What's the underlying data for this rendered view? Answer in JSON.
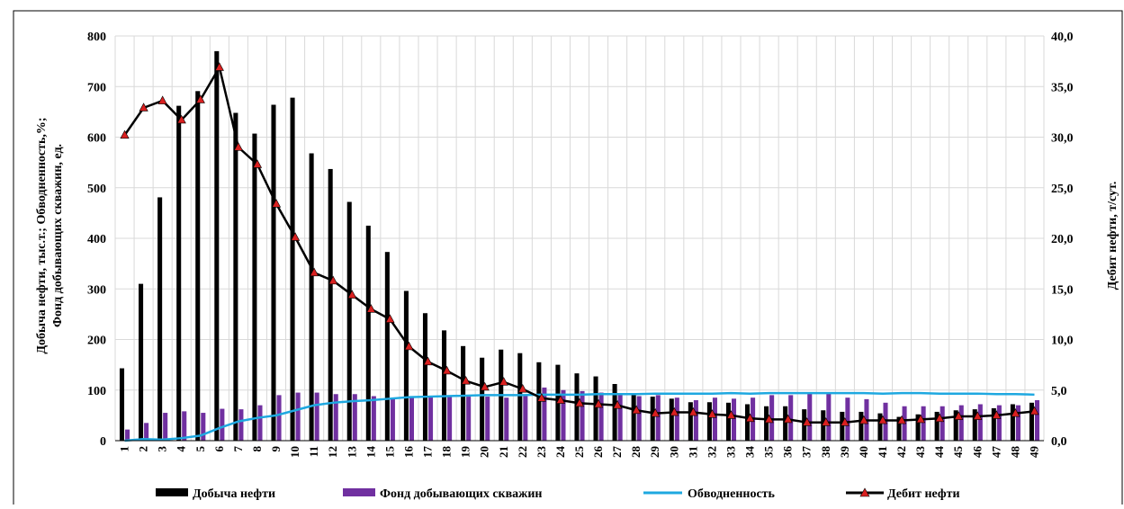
{
  "chart_data": {
    "type": "bar",
    "categories": [
      "1",
      "2",
      "3",
      "4",
      "5",
      "6",
      "7",
      "8",
      "9",
      "10",
      "11",
      "12",
      "13",
      "14",
      "15",
      "16",
      "17",
      "18",
      "19",
      "20",
      "21",
      "22",
      "23",
      "24",
      "25",
      "26",
      "27",
      "28",
      "29",
      "30",
      "31",
      "32",
      "33",
      "34",
      "35",
      "36",
      "37",
      "38",
      "39",
      "40",
      "41",
      "42",
      "43",
      "44",
      "45",
      "46",
      "47",
      "48",
      "49"
    ],
    "y_left": {
      "label_line1": "Добыча нефти, тыс.т.; Обводненность,%;",
      "label_line2": "Фонд добывающих скважин, ед.",
      "min": 0,
      "max": 800,
      "step": 100,
      "ticks": [
        "0",
        "100",
        "200",
        "300",
        "400",
        "500",
        "600",
        "700",
        "800"
      ]
    },
    "y_right": {
      "label": "Дебит нефти, т/сут.",
      "min": 0,
      "max": 40,
      "step": 5,
      "ticks": [
        "0,0",
        "5,0",
        "10,0",
        "15,0",
        "20,0",
        "25,0",
        "30,0",
        "35,0",
        "40,0"
      ]
    },
    "grid": true,
    "legend_position": "bottom",
    "series": [
      {
        "name": "Добыча нефти",
        "type": "bar",
        "axis": "left",
        "color": "#000000",
        "values": [
          143,
          310,
          481,
          662,
          691,
          770,
          648,
          607,
          664,
          678,
          568,
          537,
          472,
          425,
          373,
          296,
          252,
          218,
          187,
          164,
          180,
          173,
          155,
          150,
          133,
          127,
          112,
          90,
          87,
          83,
          76,
          76,
          75,
          72,
          68,
          68,
          62,
          60,
          57,
          57,
          54,
          47,
          52,
          57,
          60,
          62,
          64,
          72,
          75
        ]
      },
      {
        "name": "Фонд добывающих скважин",
        "type": "bar",
        "axis": "left",
        "color": "#7030A0",
        "values": [
          22,
          35,
          55,
          58,
          55,
          63,
          62,
          70,
          90,
          95,
          95,
          92,
          92,
          88,
          85,
          88,
          87,
          87,
          87,
          87,
          85,
          88,
          105,
          100,
          98,
          95,
          90,
          88,
          90,
          85,
          80,
          85,
          83,
          85,
          90,
          90,
          93,
          93,
          85,
          82,
          75,
          68,
          68,
          68,
          70,
          72,
          70,
          70,
          80
        ]
      },
      {
        "name": "Обводненность",
        "type": "line",
        "axis": "left",
        "color": "#1EA8E0",
        "values": [
          0,
          3,
          2,
          5,
          10,
          25,
          38,
          45,
          50,
          60,
          70,
          75,
          78,
          80,
          83,
          86,
          87,
          88,
          89,
          90,
          90,
          90,
          91,
          91,
          91,
          92,
          92,
          92,
          93,
          93,
          93,
          93,
          94,
          93,
          94,
          94,
          94,
          94,
          94,
          94,
          93,
          94,
          94,
          93,
          93,
          93,
          92,
          92,
          91
        ]
      },
      {
        "name": "Дебит нефти",
        "type": "line",
        "axis": "right",
        "color": "#000000",
        "marker_color": "#D92020",
        "values": [
          30.2,
          32.9,
          33.6,
          31.7,
          33.7,
          36.9,
          29.0,
          27.3,
          23.4,
          20.1,
          16.6,
          15.8,
          14.4,
          13.0,
          12.0,
          9.3,
          7.8,
          6.9,
          5.9,
          5.3,
          5.8,
          5.1,
          4.2,
          4.0,
          3.7,
          3.6,
          3.5,
          3.0,
          2.7,
          2.8,
          2.8,
          2.6,
          2.5,
          2.2,
          2.1,
          2.1,
          1.8,
          1.8,
          1.8,
          2.0,
          2.0,
          2.0,
          2.1,
          2.2,
          2.4,
          2.4,
          2.5,
          2.7,
          2.9
        ]
      }
    ]
  }
}
